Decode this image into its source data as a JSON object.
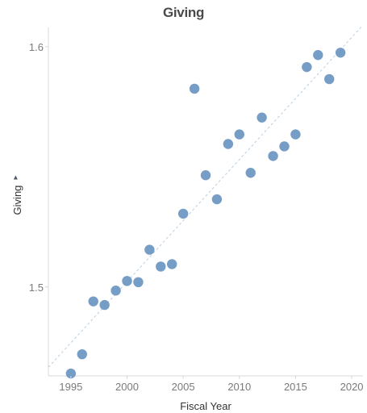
{
  "chart_data": {
    "type": "scatter",
    "title": "Giving",
    "xlabel": "Fiscal Year",
    "ylabel": "Giving",
    "ylabel_icon": "sort-icon",
    "xlim": [
      1993,
      2021
    ],
    "ylim": [
      1.463,
      1.608
    ],
    "xticks": [
      1995,
      2000,
      2005,
      2010,
      2015,
      2020
    ],
    "yticks": [
      1.5,
      1.6
    ],
    "ytick_labels": [
      "1.5",
      "1.6"
    ],
    "grid": false,
    "trend_line": true,
    "dot_color": "#6f98c2",
    "x": [
      1995,
      1996,
      1997,
      1998,
      1999,
      2000,
      2001,
      2002,
      2003,
      2004,
      2005,
      2006,
      2007,
      2008,
      2009,
      2010,
      2011,
      2012,
      2013,
      2014,
      2015,
      2016,
      2017,
      2018,
      2019
    ],
    "y": [
      1.464,
      1.472,
      1.494,
      1.4925,
      1.4985,
      1.5025,
      1.502,
      1.5155,
      1.5085,
      1.5095,
      1.5305,
      1.5825,
      1.5465,
      1.5365,
      1.5595,
      1.5635,
      1.5475,
      1.5705,
      1.5545,
      1.5585,
      1.5635,
      1.5915,
      1.5965,
      1.5865,
      1.5975
    ]
  }
}
